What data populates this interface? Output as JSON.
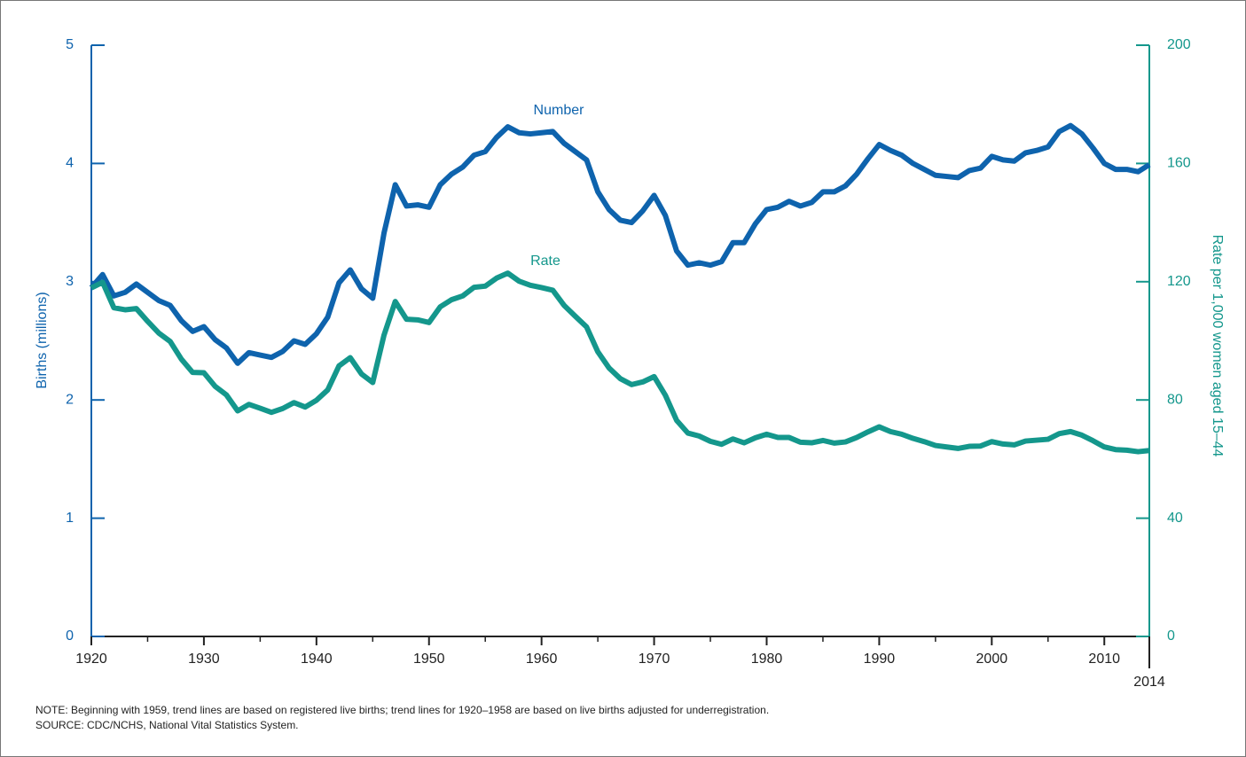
{
  "chart_data": {
    "type": "line",
    "y_label": "Births (millions)",
    "y2_label": "Rate per 1,000 women aged 15–44",
    "annotations": [
      "Number",
      "Rate"
    ],
    "note": "NOTE: Beginning with 1959, trend lines are based on registered live births; trend lines for 1920–1958 are based on live births adjusted for underregistration.",
    "source": "SOURCE: CDC/NCHS, National Vital Statistics System.",
    "x": [
      1920,
      1921,
      1922,
      1923,
      1924,
      1925,
      1926,
      1927,
      1928,
      1929,
      1930,
      1931,
      1932,
      1933,
      1934,
      1935,
      1936,
      1937,
      1938,
      1939,
      1940,
      1941,
      1942,
      1943,
      1944,
      1945,
      1946,
      1947,
      1948,
      1949,
      1950,
      1951,
      1952,
      1953,
      1954,
      1955,
      1956,
      1957,
      1958,
      1959,
      1960,
      1961,
      1962,
      1963,
      1964,
      1965,
      1966,
      1967,
      1968,
      1969,
      1970,
      1971,
      1972,
      1973,
      1974,
      1975,
      1976,
      1977,
      1978,
      1979,
      1980,
      1981,
      1982,
      1983,
      1984,
      1985,
      1986,
      1987,
      1988,
      1989,
      1990,
      1991,
      1992,
      1993,
      1994,
      1995,
      1996,
      1997,
      1998,
      1999,
      2000,
      2001,
      2002,
      2003,
      2004,
      2005,
      2006,
      2007,
      2008,
      2009,
      2010,
      2011,
      2012,
      2013,
      2014
    ],
    "series": [
      {
        "name": "Number",
        "color": "#0e63ad",
        "values": [
          2.95,
          3.06,
          2.88,
          2.91,
          2.98,
          2.91,
          2.84,
          2.8,
          2.67,
          2.58,
          2.62,
          2.51,
          2.44,
          2.31,
          2.4,
          2.38,
          2.36,
          2.41,
          2.5,
          2.47,
          2.56,
          2.7,
          2.99,
          3.1,
          2.94,
          2.86,
          3.41,
          3.82,
          3.64,
          3.65,
          3.63,
          3.82,
          3.91,
          3.97,
          4.07,
          4.1,
          4.22,
          4.31,
          4.26,
          4.25,
          4.26,
          4.27,
          4.17,
          4.1,
          4.03,
          3.76,
          3.61,
          3.52,
          3.5,
          3.6,
          3.73,
          3.56,
          3.26,
          3.14,
          3.16,
          3.14,
          3.17,
          3.33,
          3.33,
          3.49,
          3.61,
          3.63,
          3.68,
          3.64,
          3.67,
          3.76,
          3.76,
          3.81,
          3.91,
          4.04,
          4.16,
          4.11,
          4.07,
          4.0,
          3.95,
          3.9,
          3.89,
          3.88,
          3.94,
          3.96,
          4.06,
          4.03,
          4.02,
          4.09,
          4.11,
          4.14,
          4.27,
          4.32,
          4.25,
          4.13,
          4.0,
          3.95,
          3.95,
          3.93,
          3.99
        ]
      },
      {
        "name": "Rate",
        "color": "#14978c",
        "axis": "y2",
        "values": [
          117.9,
          119.8,
          111.2,
          110.5,
          110.9,
          106.6,
          102.6,
          99.8,
          93.8,
          89.3,
          89.2,
          84.6,
          81.7,
          76.3,
          78.5,
          77.2,
          75.8,
          77.1,
          79.1,
          77.6,
          79.9,
          83.4,
          91.5,
          94.3,
          88.8,
          85.9,
          101.9,
          113.3,
          107.3,
          107.1,
          106.2,
          111.5,
          113.9,
          115.2,
          118.1,
          118.5,
          121.2,
          122.9,
          120.2,
          118.8,
          118.0,
          117.1,
          112.0,
          108.3,
          104.7,
          96.3,
          90.8,
          87.2,
          85.2,
          86.1,
          87.9,
          81.6,
          73.1,
          68.8,
          67.8,
          66.0,
          65.0,
          66.8,
          65.5,
          67.2,
          68.4,
          67.3,
          67.3,
          65.7,
          65.5,
          66.3,
          65.4,
          65.8,
          67.3,
          69.2,
          70.9,
          69.3,
          68.4,
          67.0,
          65.9,
          64.6,
          64.1,
          63.6,
          64.3,
          64.4,
          65.9,
          65.1,
          64.8,
          66.1,
          66.4,
          66.7,
          68.6,
          69.3,
          68.1,
          66.2,
          64.1,
          63.2,
          63.0,
          62.5,
          62.9
        ]
      }
    ],
    "xlim": [
      1920,
      2014
    ],
    "xticks": [
      1920,
      1930,
      1940,
      1950,
      1960,
      1970,
      1980,
      1990,
      2000,
      2010,
      2014
    ],
    "ylim": [
      0,
      5
    ],
    "yticks": [
      0,
      1,
      2,
      3,
      4,
      5
    ],
    "y2lim": [
      0,
      200
    ],
    "y2ticks": [
      0,
      40,
      80,
      120,
      160,
      200
    ],
    "left_axis_color": "#0e63ad",
    "right_axis_color": "#14978c"
  }
}
